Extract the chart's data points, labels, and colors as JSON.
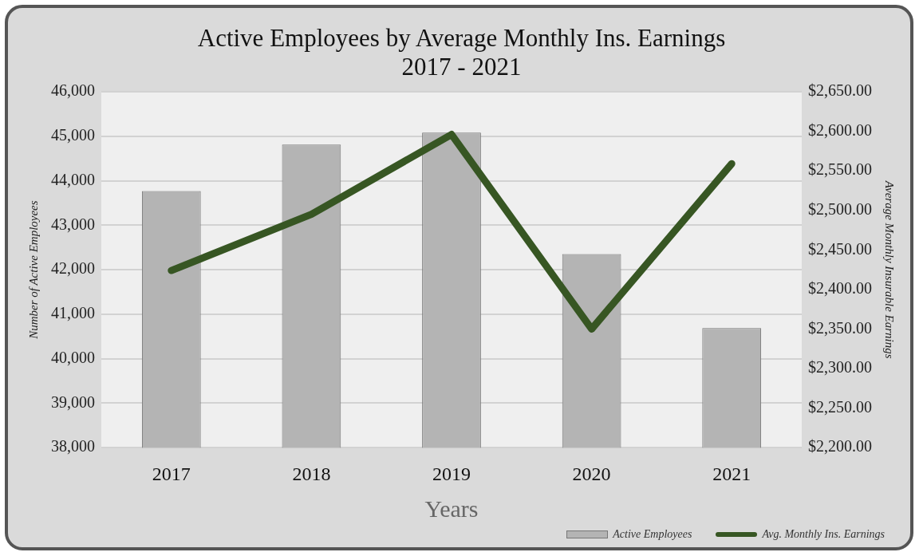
{
  "chart_data": {
    "type": "bar",
    "title": "Active Employees by Average Monthly Ins. Earnings",
    "subtitle": "2017 - 2021",
    "xlabel": "Years",
    "ylabel": "Number of Active Employees",
    "y2label": "Average Monthly Insurable Earnings",
    "categories": [
      "2017",
      "2018",
      "2019",
      "2020",
      "2021"
    ],
    "series": [
      {
        "name": "Active Employees",
        "color": "#b4b4b4",
        "values": [
          43770,
          44810,
          45080,
          42350,
          40690
        ]
      },
      {
        "name": "Avg. Monthly Ins. Earnings",
        "type": "line",
        "axis": "y2",
        "color": "#375623",
        "values": [
          2424,
          2495,
          2596,
          2350,
          2559
        ]
      }
    ],
    "ylim": [
      38000,
      46000
    ],
    "yticks": [
      {
        "value": 38000,
        "label": "38,000"
      },
      {
        "value": 39000,
        "label": "39,000"
      },
      {
        "value": 40000,
        "label": "40,000"
      },
      {
        "value": 41000,
        "label": "41,000"
      },
      {
        "value": 42000,
        "label": "42,000"
      },
      {
        "value": 43000,
        "label": "43,000"
      },
      {
        "value": 44000,
        "label": "44,000"
      },
      {
        "value": 45000,
        "label": "45,000"
      },
      {
        "value": 46000,
        "label": "46,000"
      }
    ],
    "y2lim": [
      2200,
      2650
    ],
    "y2ticks": [
      {
        "value": 2200,
        "label": "$2,200.00"
      },
      {
        "value": 2250,
        "label": "$2,250.00"
      },
      {
        "value": 2300,
        "label": "$2,300.00"
      },
      {
        "value": 2350,
        "label": "$2,350.00"
      },
      {
        "value": 2400,
        "label": "$2,400.00"
      },
      {
        "value": 2450,
        "label": "$2,450.00"
      },
      {
        "value": 2500,
        "label": "$2,500.00"
      },
      {
        "value": 2550,
        "label": "$2,550.00"
      },
      {
        "value": 2600,
        "label": "$2,600.00"
      },
      {
        "value": 2650,
        "label": "$2,650.00"
      }
    ],
    "grid": "y",
    "legend": "bottom right",
    "marker": "none",
    "line_style": "solid"
  }
}
